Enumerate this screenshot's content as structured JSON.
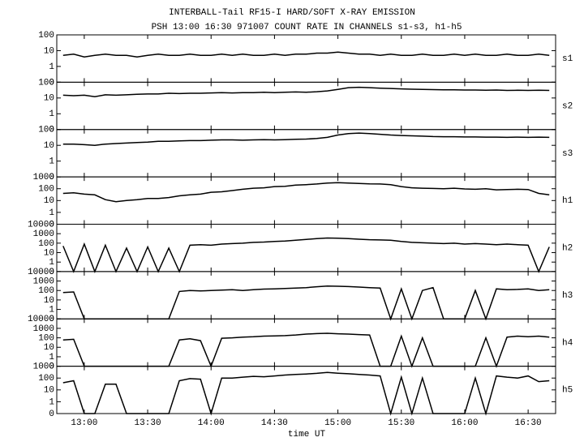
{
  "chart_data": {
    "type": "line",
    "title": "INTERBALL-Tail RF15-I HARD/SOFT X-RAY EMISSION",
    "subtitle": "PSH 13:00 16:30 971007  COUNT RATE IN CHANNELS s1-s3, h1-h5",
    "xlabel": "time UT",
    "log_scale": true,
    "color": "#000000",
    "xlim": [
      767,
      1003
    ],
    "xticks": [
      {
        "value": 780,
        "label": "13:00"
      },
      {
        "value": 810,
        "label": "13:30"
      },
      {
        "value": 840,
        "label": "14:00"
      },
      {
        "value": 870,
        "label": "14:30"
      },
      {
        "value": 900,
        "label": "15:00"
      },
      {
        "value": 930,
        "label": "15:30"
      },
      {
        "value": 960,
        "label": "16:00"
      },
      {
        "value": 990,
        "label": "16:30"
      }
    ],
    "x": [
      770,
      775,
      780,
      785,
      790,
      795,
      800,
      805,
      810,
      815,
      820,
      825,
      830,
      835,
      840,
      845,
      850,
      855,
      860,
      865,
      870,
      875,
      880,
      885,
      890,
      895,
      900,
      905,
      910,
      915,
      920,
      925,
      930,
      935,
      940,
      945,
      950,
      955,
      960,
      965,
      970,
      975,
      980,
      985,
      990,
      995,
      1000
    ],
    "series": [
      {
        "name": "s1",
        "ylim": [
          0,
          100
        ],
        "yticks": [
          0,
          1,
          10,
          100
        ],
        "values": [
          5,
          6,
          4,
          5,
          6,
          5,
          5,
          4,
          5,
          6,
          5,
          5,
          6,
          5,
          5,
          6,
          5,
          6,
          5,
          5,
          6,
          5,
          6,
          6,
          7,
          7,
          8,
          7,
          6,
          6,
          5,
          6,
          5,
          5,
          6,
          5,
          5,
          6,
          5,
          6,
          5,
          5,
          6,
          5,
          5,
          6,
          5
        ]
      },
      {
        "name": "s2",
        "ylim": [
          0,
          100
        ],
        "yticks": [
          0,
          1,
          10,
          100
        ],
        "values": [
          15,
          14,
          15,
          12,
          16,
          15,
          16,
          17,
          18,
          18,
          20,
          19,
          20,
          20,
          21,
          22,
          21,
          22,
          22,
          23,
          22,
          23,
          24,
          23,
          25,
          28,
          35,
          45,
          48,
          45,
          42,
          40,
          38,
          36,
          35,
          34,
          33,
          33,
          32,
          32,
          31,
          32,
          30,
          31,
          30,
          31,
          30
        ]
      },
      {
        "name": "s3",
        "ylim": [
          0,
          100
        ],
        "yticks": [
          0,
          1,
          10,
          100
        ],
        "values": [
          12,
          12,
          11,
          10,
          12,
          13,
          14,
          15,
          16,
          18,
          18,
          19,
          20,
          20,
          21,
          22,
          22,
          21,
          22,
          23,
          22,
          23,
          24,
          25,
          27,
          32,
          45,
          55,
          60,
          55,
          50,
          45,
          42,
          40,
          38,
          36,
          35,
          35,
          34,
          34,
          33,
          33,
          32,
          33,
          32,
          33,
          32
        ]
      },
      {
        "name": "h1",
        "ylim": [
          0,
          1000
        ],
        "yticks": [
          0,
          1,
          10,
          100,
          1000
        ],
        "values": [
          40,
          45,
          35,
          30,
          12,
          8,
          10,
          12,
          15,
          15,
          18,
          25,
          30,
          35,
          50,
          55,
          70,
          90,
          110,
          120,
          150,
          160,
          200,
          220,
          250,
          300,
          320,
          300,
          280,
          260,
          250,
          220,
          150,
          120,
          110,
          105,
          100,
          110,
          95,
          90,
          100,
          80,
          85,
          90,
          85,
          40,
          30
        ]
      },
      {
        "name": "h2",
        "ylim": [
          0,
          10000
        ],
        "yticks": [
          0,
          1,
          10,
          100,
          1000,
          10000
        ],
        "values": [
          50,
          0,
          80,
          0,
          60,
          0,
          30,
          0,
          40,
          0,
          30,
          0,
          60,
          70,
          60,
          80,
          90,
          100,
          120,
          130,
          150,
          170,
          200,
          250,
          300,
          350,
          330,
          300,
          260,
          230,
          220,
          200,
          150,
          120,
          110,
          100,
          90,
          100,
          80,
          90,
          80,
          70,
          80,
          70,
          60,
          0,
          40
        ]
      },
      {
        "name": "h3",
        "ylim": [
          0,
          10000
        ],
        "yticks": [
          0,
          1,
          10,
          100,
          1000,
          10000
        ],
        "values": [
          60,
          70,
          0,
          0,
          0,
          0,
          0,
          0,
          0,
          0,
          0,
          80,
          100,
          90,
          100,
          110,
          120,
          100,
          120,
          140,
          150,
          160,
          180,
          200,
          250,
          300,
          280,
          260,
          230,
          200,
          180,
          0,
          150,
          0,
          100,
          200,
          0,
          0,
          0,
          100,
          0,
          150,
          120,
          130,
          150,
          100,
          120
        ]
      },
      {
        "name": "h4",
        "ylim": [
          0,
          10000
        ],
        "yticks": [
          0,
          1,
          10,
          100,
          1000,
          10000
        ],
        "values": [
          60,
          70,
          0,
          0,
          0,
          0,
          0,
          0,
          0,
          0,
          0,
          60,
          80,
          50,
          0,
          90,
          100,
          120,
          130,
          150,
          160,
          170,
          200,
          250,
          280,
          300,
          270,
          250,
          220,
          200,
          0,
          0,
          150,
          0,
          100,
          0,
          0,
          0,
          0,
          0,
          100,
          0,
          120,
          150,
          130,
          150,
          120
        ]
      },
      {
        "name": "h5",
        "ylim": [
          0,
          1000
        ],
        "yticks": [
          0,
          1,
          10,
          100,
          1000
        ],
        "values": [
          40,
          60,
          0,
          0,
          30,
          30,
          0,
          0,
          0,
          0,
          0,
          60,
          90,
          80,
          0,
          100,
          100,
          120,
          140,
          130,
          150,
          180,
          200,
          220,
          250,
          300,
          260,
          230,
          200,
          180,
          150,
          0,
          120,
          0,
          100,
          0,
          0,
          0,
          0,
          100,
          0,
          150,
          120,
          100,
          150,
          50,
          60
        ]
      }
    ]
  }
}
